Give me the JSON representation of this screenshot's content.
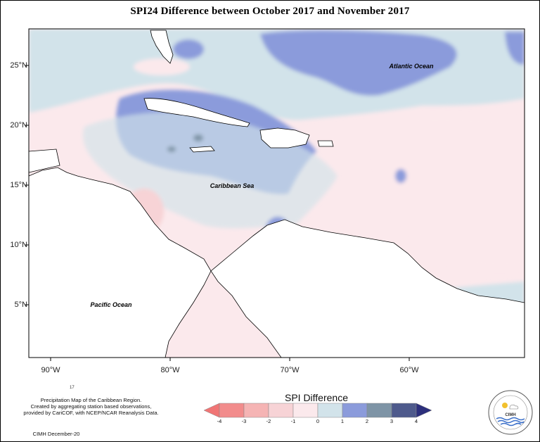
{
  "title": "SPI24 Difference between October 2017 and November 2017",
  "map": {
    "lat_labels": [
      "25°N",
      "20°N",
      "15°N",
      "10°N",
      "5°N"
    ],
    "lon_labels": [
      "90°W",
      "80°W",
      "70°W",
      "60°W"
    ],
    "place_labels": {
      "atlantic": "Atlantic Ocean",
      "caribbean": "Caribbean Sea",
      "pacific": "Pacific Ocean"
    }
  },
  "legend": {
    "title": "SPI Difference",
    "ticks": [
      "-4",
      "-3",
      "-2",
      "-1",
      "0",
      "1",
      "2",
      "3",
      "4"
    ],
    "colors": [
      "#f28c8c",
      "#f5b4b4",
      "#f7d3d6",
      "#fbe9ec",
      "#d2e3ea",
      "#8b9bdb",
      "#7e94a6",
      "#4e5a8c"
    ],
    "low_arrow_color": "#f07575",
    "high_arrow_color": "#2c2f7c"
  },
  "credits": {
    "small_number": "17",
    "line1": "Precipitation Map of the Caribbean Region.",
    "line2": "Created by aggregating station based observations,",
    "line3": "provided by CariCOF, with NCEP/NCAR Reanalysis Data.",
    "date": "CIMH December-20"
  },
  "logo": {
    "text": "CIMH"
  }
}
